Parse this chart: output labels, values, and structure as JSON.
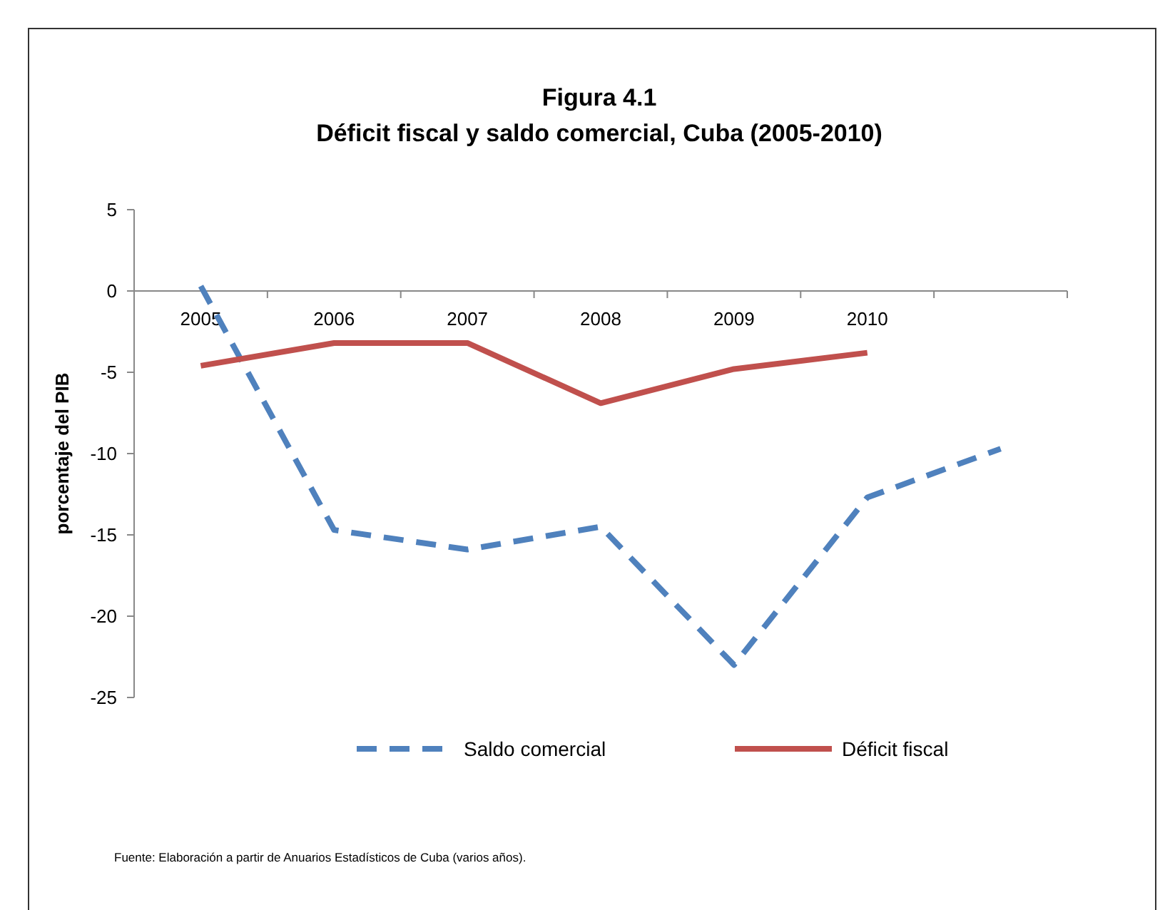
{
  "chart_data": {
    "type": "line",
    "title": "Figura 4.1",
    "subtitle": "Déficit fiscal y saldo comercial, Cuba (2005-2010)",
    "ylabel": "porcentaje del PIB",
    "categories": [
      "2005",
      "2006",
      "2007",
      "2008",
      "2009",
      "2010",
      null
    ],
    "series": [
      {
        "name": "Saldo comercial",
        "color": "#4f81bd",
        "line_style": "dashed",
        "values": [
          0.3,
          -14.7,
          -15.9,
          -14.5,
          -23,
          -12.7,
          -9.7
        ]
      },
      {
        "name": "Déficit fiscal",
        "color": "#c0504d",
        "line_style": "solid",
        "values": [
          -4.6,
          -3.2,
          -3.2,
          -6.9,
          -4.8,
          -3.8,
          null
        ]
      }
    ],
    "ylim": [
      -25,
      5
    ],
    "yticks": [
      -25,
      -20,
      -15,
      -10,
      -5,
      0,
      5
    ],
    "grid": false,
    "legend": "bottom",
    "annotations": [
      "Fuente:  Elaboración a partir de Anuarios Estadísticos de Cuba (varios años)."
    ]
  }
}
